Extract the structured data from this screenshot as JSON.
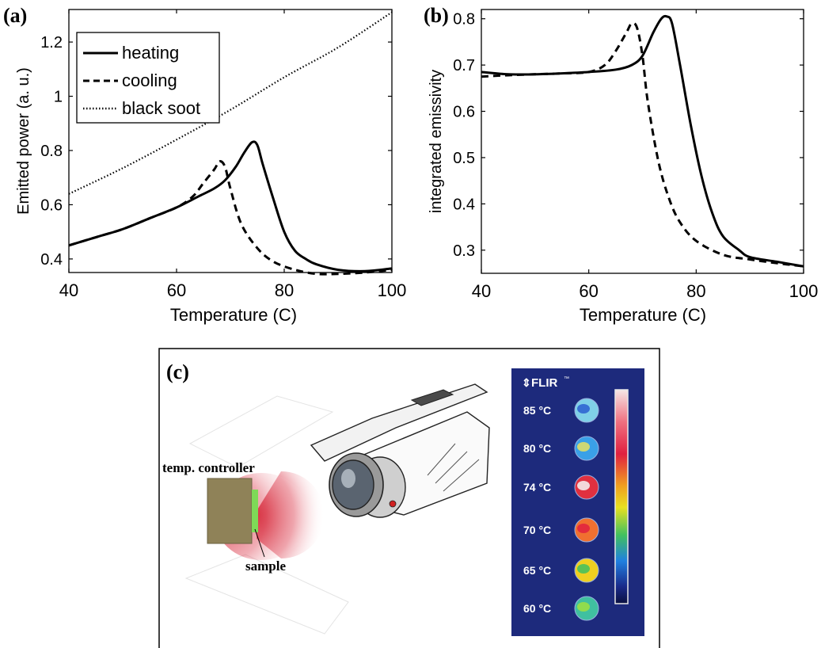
{
  "chart_data": [
    {
      "panel_label": "(a)",
      "type": "line",
      "xlabel": "Temperature (C)",
      "ylabel": "Emitted power (a. u.)",
      "xlim": [
        40,
        100
      ],
      "ylim": [
        0.35,
        1.32
      ],
      "xticks": [
        40,
        60,
        80,
        100
      ],
      "yticks": [
        0.4,
        0.6,
        0.8,
        1,
        1.2
      ],
      "xtick_labels": [
        "40",
        "60",
        "80",
        "100"
      ],
      "ytick_labels": [
        "0.4",
        "0.6",
        "0.8",
        "1",
        "1.2"
      ],
      "grid": false,
      "legend_position": "top-left",
      "series": [
        {
          "name": "heating",
          "style": "solid",
          "x": [
            40,
            45,
            50,
            55,
            60,
            64,
            67,
            69,
            71,
            72.5,
            74,
            75,
            76,
            78,
            80,
            82,
            84,
            86,
            90,
            95,
            100
          ],
          "y": [
            0.45,
            0.48,
            0.51,
            0.55,
            0.59,
            0.63,
            0.66,
            0.69,
            0.74,
            0.79,
            0.83,
            0.82,
            0.75,
            0.62,
            0.5,
            0.43,
            0.4,
            0.38,
            0.36,
            0.355,
            0.365
          ]
        },
        {
          "name": "cooling",
          "style": "dashed",
          "x": [
            40,
            45,
            50,
            55,
            60,
            63,
            65,
            67,
            68,
            69,
            70,
            72,
            75,
            78,
            82,
            86,
            90,
            95,
            100
          ],
          "y": [
            0.45,
            0.48,
            0.51,
            0.55,
            0.59,
            0.63,
            0.68,
            0.73,
            0.76,
            0.74,
            0.66,
            0.53,
            0.44,
            0.39,
            0.36,
            0.345,
            0.345,
            0.35,
            0.36
          ]
        },
        {
          "name": "black soot",
          "style": "dotted",
          "x": [
            40,
            50,
            60,
            70,
            80,
            90,
            100
          ],
          "y": [
            0.64,
            0.735,
            0.84,
            0.95,
            1.07,
            1.18,
            1.31
          ]
        }
      ]
    },
    {
      "panel_label": "(b)",
      "type": "line",
      "xlabel": "Temperature (C)",
      "ylabel": "integrated emissivity",
      "xlim": [
        40,
        100
      ],
      "ylim": [
        0.25,
        0.82
      ],
      "xticks": [
        40,
        60,
        80,
        100
      ],
      "yticks": [
        0.3,
        0.4,
        0.5,
        0.6,
        0.7,
        0.8
      ],
      "xtick_labels": [
        "40",
        "60",
        "80",
        "100"
      ],
      "ytick_labels": [
        "0.3",
        "0.4",
        "0.5",
        "0.6",
        "0.7",
        "0.8"
      ],
      "grid": false,
      "series": [
        {
          "style": "solid",
          "x": [
            40,
            45,
            50,
            55,
            60,
            65,
            68,
            70,
            72,
            73.5,
            74.5,
            75.5,
            77,
            79,
            81,
            83,
            85,
            88,
            90,
            95,
            100
          ],
          "y": [
            0.685,
            0.68,
            0.68,
            0.682,
            0.685,
            0.69,
            0.7,
            0.72,
            0.77,
            0.8,
            0.805,
            0.79,
            0.7,
            0.57,
            0.46,
            0.38,
            0.33,
            0.3,
            0.285,
            0.275,
            0.265
          ]
        },
        {
          "style": "dashed",
          "x": [
            40,
            45,
            50,
            55,
            60,
            63,
            65,
            67,
            68,
            69,
            70,
            71,
            73,
            75,
            77,
            80,
            85,
            90,
            95,
            100
          ],
          "y": [
            0.675,
            0.678,
            0.68,
            0.682,
            0.685,
            0.7,
            0.73,
            0.77,
            0.79,
            0.78,
            0.72,
            0.62,
            0.49,
            0.41,
            0.36,
            0.32,
            0.29,
            0.28,
            0.272,
            0.265
          ]
        }
      ]
    }
  ],
  "panel_c": {
    "label": "(c)",
    "controller_label": "temp. controller",
    "sample_label": "sample",
    "brand": "FLIR",
    "brand_tm": "™",
    "colors": {
      "controller": "#8f8258",
      "sample": "#7ed957",
      "glow": "#e02030",
      "thermal_bg": "#1d2a7c"
    },
    "thermal_readings": [
      {
        "label": "85 °C",
        "color": "#7fd0e8",
        "accent": "#2a5fd0"
      },
      {
        "label": "80 °C",
        "color": "#3aa0e8",
        "accent": "#e8e060"
      },
      {
        "label": "74 °C",
        "color": "#e03040",
        "accent": "#f5f5f5"
      },
      {
        "label": "70 °C",
        "color": "#f07030",
        "accent": "#e02040"
      },
      {
        "label": "65 °C",
        "color": "#f0d020",
        "accent": "#40c060"
      },
      {
        "label": "60 °C",
        "color": "#40c0a0",
        "accent": "#a0e040"
      }
    ]
  }
}
